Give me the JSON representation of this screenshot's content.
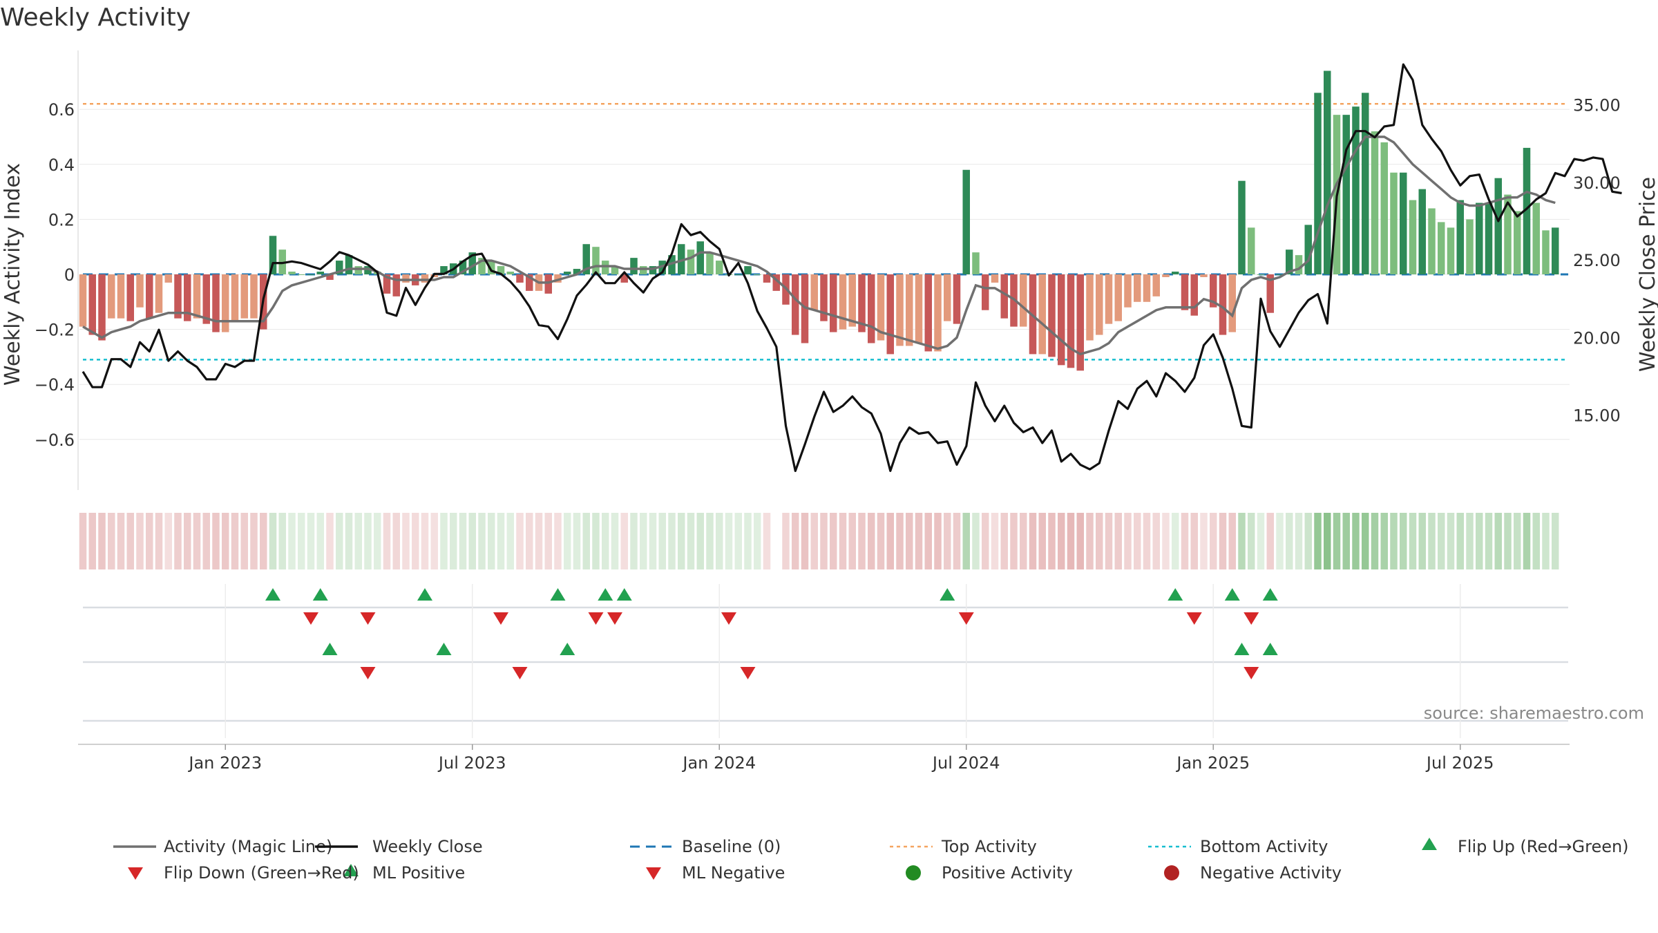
{
  "chart_data": {
    "type": "bar",
    "title": "Weekly Activity",
    "ylabel": "Weekly Activity Index",
    "y2label": "Weekly Close Price",
    "ylim": [
      -0.8,
      0.8
    ],
    "y2lim": [
      10.17,
      38.5
    ],
    "yticks": [
      -0.6,
      -0.4,
      -0.2,
      0,
      0.2,
      0.4,
      0.6
    ],
    "ytick_labels": [
      "−0.6",
      "−0.4",
      "−0.2",
      "0",
      "0.2",
      "0.4",
      "0.6"
    ],
    "y2ticks": [
      15,
      20,
      25,
      30,
      35
    ],
    "y2tick_labels": [
      "15.00",
      "20.00",
      "25.00",
      "30.00",
      "35.00"
    ],
    "xticks": [
      "Jan 2023",
      "Jul 2023",
      "Jan 2024",
      "Jul 2024",
      "Jan 2025",
      "Jul 2025"
    ],
    "xtick_weeks": [
      15,
      41,
      67,
      93,
      119,
      145
    ],
    "top_activity": 0.62,
    "bottom_activity": -0.31,
    "activity_weekly": [
      -0.19,
      -0.22,
      -0.24,
      -0.16,
      -0.16,
      -0.17,
      -0.12,
      -0.16,
      -0.14,
      -0.03,
      -0.16,
      -0.17,
      -0.16,
      -0.18,
      -0.21,
      -0.21,
      -0.17,
      -0.16,
      -0.16,
      -0.2,
      0.14,
      0.09,
      0.01,
      0.0,
      0.0,
      0.01,
      -0.02,
      0.05,
      0.07,
      0.03,
      0.03,
      0.01,
      -0.07,
      -0.08,
      -0.03,
      -0.04,
      -0.03,
      -0.01,
      0.03,
      0.04,
      0.05,
      0.08,
      0.06,
      0.05,
      0.03,
      0.01,
      -0.03,
      -0.06,
      -0.06,
      -0.07,
      -0.03,
      0.01,
      0.02,
      0.11,
      0.1,
      0.05,
      0.03,
      -0.03,
      0.06,
      0.03,
      0.03,
      0.05,
      0.07,
      0.11,
      0.09,
      0.12,
      0.08,
      0.05,
      0.0,
      0.0,
      0.03,
      0.0,
      -0.03,
      -0.06,
      -0.11,
      -0.22,
      -0.25,
      -0.13,
      -0.17,
      -0.21,
      -0.2,
      -0.19,
      -0.21,
      -0.25,
      -0.24,
      -0.29,
      -0.26,
      -0.26,
      -0.25,
      -0.28,
      -0.28,
      -0.17,
      -0.18,
      0.38,
      0.08,
      -0.13,
      -0.03,
      -0.16,
      -0.19,
      -0.19,
      -0.29,
      -0.29,
      -0.3,
      -0.33,
      -0.34,
      -0.35,
      -0.24,
      -0.22,
      -0.18,
      -0.17,
      -0.12,
      -0.1,
      -0.1,
      -0.08,
      -0.01,
      0.01,
      -0.13,
      -0.15,
      -0.01,
      -0.12,
      -0.22,
      -0.21,
      0.34,
      0.17,
      0.0,
      -0.14,
      0.0,
      0.09,
      0.07,
      0.18,
      0.66,
      0.74,
      0.58,
      0.58,
      0.61,
      0.66,
      0.52,
      0.48,
      0.37,
      0.37,
      0.27,
      0.31,
      0.24,
      0.19,
      0.17,
      0.27,
      0.2,
      0.26,
      0.26,
      0.35,
      0.29,
      0.23,
      0.46,
      0.26,
      0.16,
      0.17
    ],
    "magic_line": [
      -0.19,
      -0.21,
      -0.23,
      -0.21,
      -0.2,
      -0.19,
      -0.17,
      -0.16,
      -0.15,
      -0.14,
      -0.14,
      -0.14,
      -0.15,
      -0.16,
      -0.17,
      -0.17,
      -0.17,
      -0.17,
      -0.17,
      -0.17,
      -0.12,
      -0.06,
      -0.04,
      -0.03,
      -0.02,
      -0.01,
      0.0,
      0.01,
      0.02,
      0.02,
      0.02,
      0.01,
      -0.01,
      -0.02,
      -0.02,
      -0.02,
      -0.02,
      -0.02,
      -0.01,
      -0.01,
      0.01,
      0.03,
      0.05,
      0.05,
      0.04,
      0.03,
      0.01,
      -0.01,
      -0.03,
      -0.03,
      -0.02,
      -0.01,
      0.0,
      0.02,
      0.03,
      0.03,
      0.03,
      0.02,
      0.02,
      0.02,
      0.02,
      0.03,
      0.04,
      0.05,
      0.06,
      0.08,
      0.08,
      0.07,
      0.06,
      0.05,
      0.04,
      0.03,
      0.01,
      -0.02,
      -0.05,
      -0.09,
      -0.12,
      -0.13,
      -0.14,
      -0.15,
      -0.16,
      -0.17,
      -0.18,
      -0.19,
      -0.21,
      -0.22,
      -0.23,
      -0.24,
      -0.25,
      -0.26,
      -0.27,
      -0.26,
      -0.23,
      -0.13,
      -0.04,
      -0.05,
      -0.05,
      -0.07,
      -0.09,
      -0.12,
      -0.15,
      -0.18,
      -0.21,
      -0.24,
      -0.27,
      -0.29,
      -0.28,
      -0.27,
      -0.25,
      -0.21,
      -0.19,
      -0.17,
      -0.15,
      -0.13,
      -0.12,
      -0.12,
      -0.12,
      -0.12,
      -0.09,
      -0.1,
      -0.12,
      -0.15,
      -0.05,
      -0.02,
      -0.01,
      -0.02,
      -0.01,
      0.01,
      0.02,
      0.05,
      0.15,
      0.25,
      0.33,
      0.39,
      0.45,
      0.5,
      0.5,
      0.5,
      0.48,
      0.44,
      0.4,
      0.37,
      0.34,
      0.31,
      0.28,
      0.26,
      0.25,
      0.25,
      0.26,
      0.27,
      0.28,
      0.28,
      0.3,
      0.29,
      0.27,
      0.26
    ],
    "weekly_close": [
      17.8,
      16.8,
      16.8,
      18.6,
      18.6,
      18.1,
      19.7,
      19.1,
      20.5,
      18.5,
      19.1,
      18.5,
      18.1,
      17.3,
      17.3,
      18.3,
      18.1,
      18.5,
      18.5,
      22.5,
      24.8,
      24.8,
      24.9,
      24.8,
      24.6,
      24.4,
      24.9,
      25.5,
      25.3,
      25.0,
      24.7,
      24.2,
      21.6,
      21.4,
      23.2,
      22.1,
      23.2,
      24.1,
      24.1,
      24.4,
      24.9,
      25.3,
      25.4,
      24.3,
      24.1,
      23.6,
      22.9,
      22.0,
      20.8,
      20.7,
      19.9,
      21.2,
      22.7,
      23.4,
      24.2,
      23.5,
      23.5,
      24.2,
      23.5,
      22.9,
      23.8,
      24.2,
      25.4,
      27.3,
      26.6,
      26.8,
      26.2,
      25.7,
      24.0,
      24.8,
      23.5,
      21.7,
      20.6,
      19.4,
      14.3,
      11.4,
      13.1,
      14.9,
      16.5,
      15.2,
      15.6,
      16.2,
      15.5,
      15.1,
      13.8,
      11.4,
      13.2,
      14.2,
      13.8,
      13.9,
      13.2,
      13.3,
      11.8,
      13.0,
      17.1,
      15.6,
      14.6,
      15.6,
      14.5,
      13.9,
      14.2,
      13.2,
      14.0,
      12.0,
      12.5,
      11.8,
      11.5,
      11.9,
      14.0,
      15.9,
      15.4,
      16.7,
      17.2,
      16.2,
      17.7,
      17.2,
      16.5,
      17.4,
      19.5,
      20.2,
      18.7,
      16.7,
      14.3,
      14.2,
      22.5,
      20.4,
      19.4,
      20.5,
      21.6,
      22.4,
      22.8,
      20.9,
      29.1,
      32.1,
      33.3,
      33.3,
      32.9,
      33.6,
      33.7,
      37.6,
      36.6,
      33.7,
      32.8,
      32.0,
      30.8,
      29.8,
      30.4,
      30.5,
      28.9,
      27.5,
      28.7,
      27.8,
      28.3,
      28.9,
      29.3,
      30.6,
      30.4,
      31.5,
      31.4,
      31.6,
      31.5,
      29.4,
      29.3
    ],
    "strip_gap_week": 73,
    "signal_rows": {
      "flip_up_weeks": [
        20,
        25,
        36,
        50,
        55,
        57,
        91,
        115,
        121,
        125
      ],
      "flip_down_weeks": [
        24,
        30,
        44,
        54,
        56,
        68,
        93,
        117,
        123
      ],
      "ml_positive_weeks": [
        26,
        38,
        51,
        122,
        125
      ],
      "ml_negative_weeks": [
        30,
        46,
        70,
        123
      ]
    },
    "source": "source: sharemaestro.com",
    "legend": [
      "Activity (Magic Line)",
      "Weekly Close",
      "Baseline (0)",
      "Top Activity",
      "Bottom Activity",
      "Flip Up (Red→Green)",
      "Flip Down (Green→Red)",
      "ML Positive",
      "ML Negative",
      "Positive Activity",
      "Negative Activity"
    ],
    "colors": {
      "pos_dark": "#2e8a57",
      "pos_light": "#7dbd7d",
      "neg_dark": "#c65858",
      "neg_light": "#e39a7c",
      "magic_line": "#707070",
      "close": "#111111",
      "baseline": "#1f77b4",
      "top_activity": "#f4a460",
      "bottom_activity": "#17becf",
      "up_marker": "#22a150",
      "down_marker": "#d62728",
      "pos_legend": "#228b22",
      "neg_legend": "#b22222"
    }
  }
}
